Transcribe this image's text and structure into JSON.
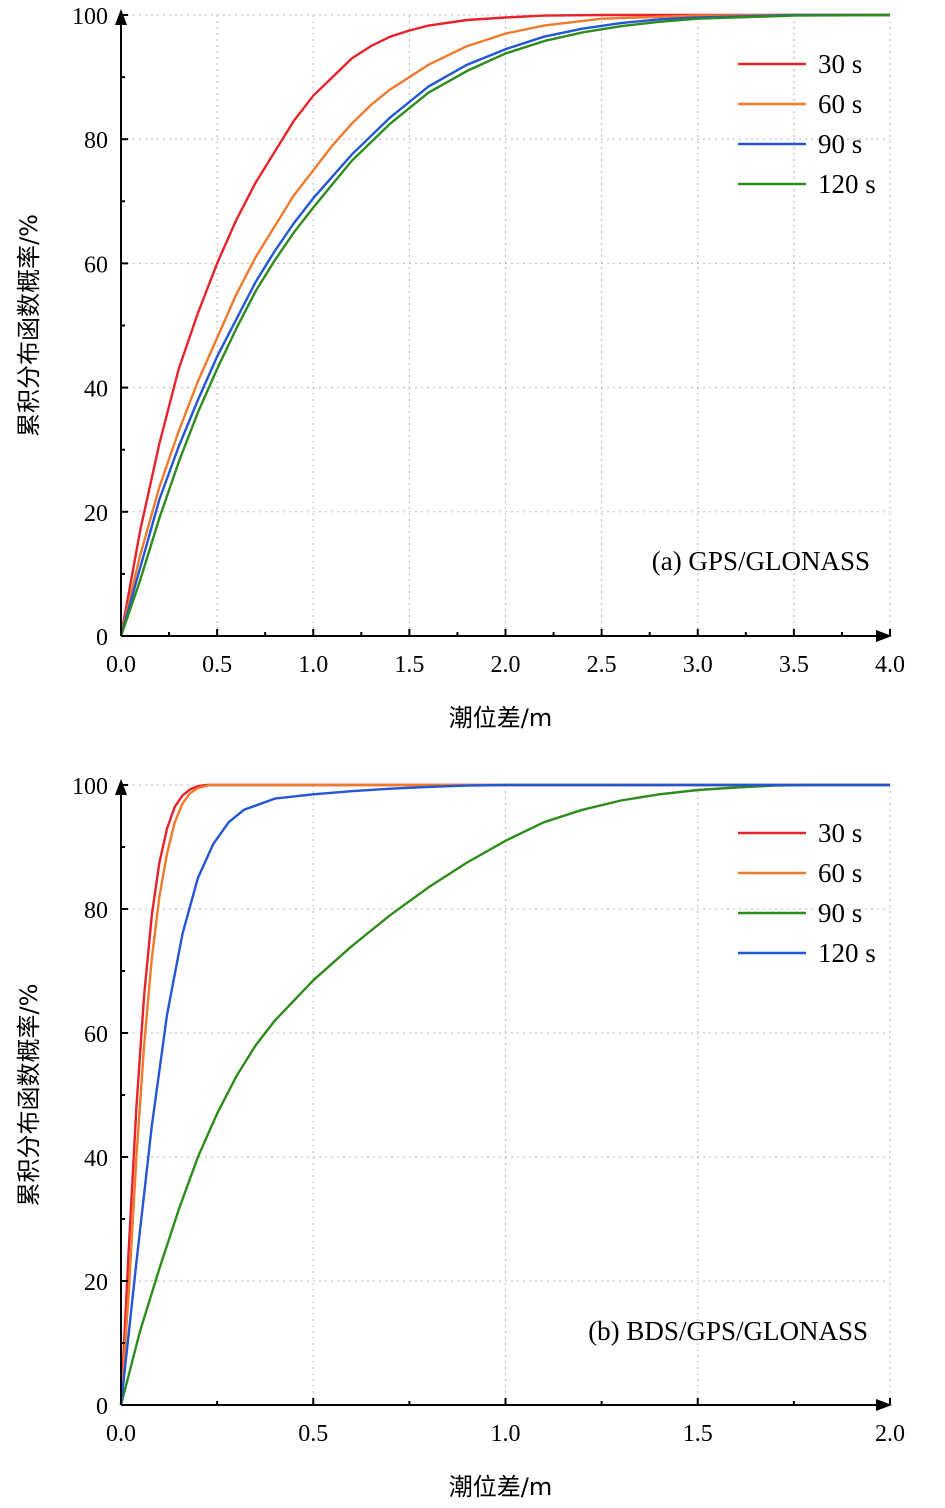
{
  "chart_data": [
    {
      "type": "line",
      "annotation": "(a) GPS/GLONASS",
      "xlabel": "潮位差/m",
      "ylabel": "累积分布函数概率/%",
      "xlim": [
        0,
        4.0
      ],
      "ylim": [
        0,
        100
      ],
      "xticks": [
        "0.0",
        "0.5",
        "1.0",
        "1.5",
        "2.0",
        "2.5",
        "3.0",
        "3.5",
        "4.0"
      ],
      "yticks": [
        "0",
        "20",
        "40",
        "60",
        "80",
        "100"
      ],
      "grid": true,
      "legend_position": "top-right",
      "series": [
        {
          "name": "30 s",
          "color": "#e8222a",
          "x": [
            0,
            0.1,
            0.2,
            0.3,
            0.4,
            0.5,
            0.6,
            0.7,
            0.8,
            0.9,
            1.0,
            1.1,
            1.2,
            1.3,
            1.4,
            1.5,
            1.6,
            1.8,
            2.0,
            2.2,
            2.5,
            3.0,
            4.0
          ],
          "y": [
            0,
            17,
            31,
            43,
            52,
            60,
            67,
            73,
            78,
            83,
            87,
            90,
            93,
            95,
            96.5,
            97.5,
            98.3,
            99.2,
            99.6,
            99.9,
            100,
            100,
            100
          ]
        },
        {
          "name": "60 s",
          "color": "#f07a2c",
          "x": [
            0,
            0.1,
            0.2,
            0.3,
            0.4,
            0.5,
            0.6,
            0.7,
            0.8,
            0.9,
            1.0,
            1.1,
            1.2,
            1.3,
            1.4,
            1.5,
            1.6,
            1.8,
            2.0,
            2.2,
            2.5,
            3.0,
            3.5,
            4.0
          ],
          "y": [
            0,
            13,
            24,
            33,
            41,
            48,
            55,
            61,
            66,
            71,
            75,
            79,
            82.5,
            85.5,
            88,
            90,
            92,
            95,
            97,
            98.3,
            99.4,
            99.9,
            100,
            100
          ]
        },
        {
          "name": "90 s",
          "color": "#2356d6",
          "x": [
            0,
            0.1,
            0.2,
            0.3,
            0.4,
            0.5,
            0.6,
            0.7,
            0.8,
            0.9,
            1.0,
            1.2,
            1.4,
            1.6,
            1.8,
            2.0,
            2.2,
            2.4,
            2.6,
            2.8,
            3.0,
            3.5,
            4.0
          ],
          "y": [
            0,
            11,
            22,
            30.5,
            38,
            45,
            51,
            57,
            62,
            66.5,
            70.5,
            77.5,
            83.5,
            88.5,
            92,
            94.5,
            96.5,
            97.8,
            98.7,
            99.3,
            99.6,
            100,
            100
          ]
        },
        {
          "name": "120 s",
          "color": "#2e8c1c",
          "x": [
            0,
            0.1,
            0.2,
            0.3,
            0.4,
            0.5,
            0.6,
            0.7,
            0.8,
            0.9,
            1.0,
            1.2,
            1.4,
            1.6,
            1.8,
            2.0,
            2.2,
            2.4,
            2.6,
            2.8,
            3.0,
            3.5,
            4.0
          ],
          "y": [
            0,
            9,
            19,
            28,
            36,
            43,
            49.5,
            55.5,
            60.5,
            65,
            69,
            76.5,
            82.5,
            87.5,
            91,
            93.8,
            95.8,
            97.2,
            98.2,
            98.9,
            99.4,
            99.9,
            100
          ]
        }
      ]
    },
    {
      "type": "line",
      "annotation": "(b) BDS/GPS/GLONASS",
      "xlabel": "潮位差/m",
      "ylabel": "累积分布函数概率/%",
      "xlim": [
        0,
        2.0
      ],
      "ylim": [
        0,
        100
      ],
      "xticks": [
        "0.0",
        "0.5",
        "1.0",
        "1.5",
        "2.0"
      ],
      "yticks": [
        "0",
        "20",
        "40",
        "60",
        "80",
        "100"
      ],
      "grid": true,
      "legend_position": "top-right",
      "series": [
        {
          "name": "30 s",
          "color": "#e8222a",
          "x": [
            0,
            0.02,
            0.04,
            0.06,
            0.08,
            0.1,
            0.12,
            0.14,
            0.16,
            0.18,
            0.2,
            0.22,
            0.3,
            2.0
          ],
          "y": [
            0,
            25,
            48,
            66,
            79,
            87.5,
            93,
            96.5,
            98.3,
            99.3,
            99.8,
            100,
            100,
            100
          ]
        },
        {
          "name": "60 s",
          "color": "#f07a2c",
          "x": [
            0,
            0.02,
            0.04,
            0.06,
            0.08,
            0.1,
            0.12,
            0.14,
            0.16,
            0.18,
            0.2,
            0.23,
            0.3,
            2.0
          ],
          "y": [
            0,
            18,
            40,
            58,
            72,
            82,
            89,
            94,
            97,
            98.7,
            99.5,
            100,
            100,
            100
          ]
        },
        {
          "name": "90 s",
          "color": "#2e8c1c",
          "x": [
            0,
            0.05,
            0.1,
            0.15,
            0.2,
            0.25,
            0.3,
            0.35,
            0.4,
            0.5,
            0.6,
            0.7,
            0.8,
            0.9,
            1.0,
            1.1,
            1.2,
            1.3,
            1.4,
            1.5,
            1.6,
            1.7,
            1.8,
            2.0
          ],
          "y": [
            0,
            12,
            22,
            31.5,
            40,
            47,
            53,
            58,
            62,
            68.5,
            74,
            79,
            83.5,
            87.5,
            91,
            94,
            96,
            97.5,
            98.5,
            99.2,
            99.6,
            99.9,
            100,
            100
          ]
        },
        {
          "name": "120 s",
          "color": "#2356d6",
          "x": [
            0,
            0.04,
            0.08,
            0.12,
            0.16,
            0.2,
            0.24,
            0.28,
            0.32,
            0.4,
            0.5,
            0.6,
            0.7,
            0.8,
            0.9,
            1.0,
            1.2,
            1.5,
            2.0
          ],
          "y": [
            0,
            23,
            45,
            63,
            76,
            85,
            90.5,
            94,
            96,
            97.8,
            98.5,
            99,
            99.4,
            99.7,
            99.9,
            100,
            100,
            100,
            100
          ]
        }
      ]
    }
  ]
}
